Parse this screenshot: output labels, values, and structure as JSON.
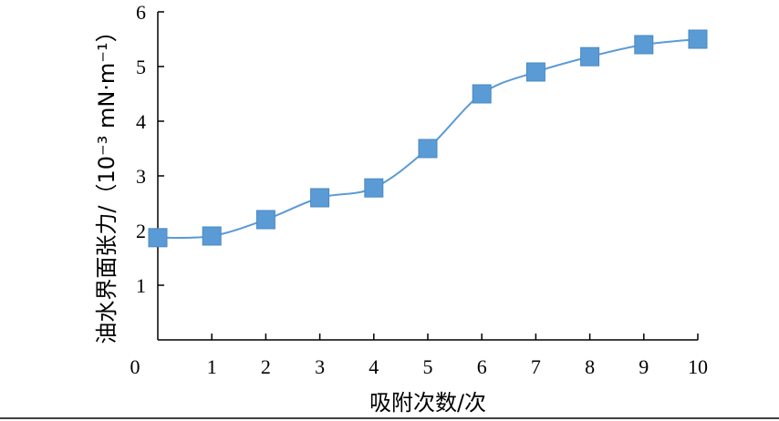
{
  "chart_data": {
    "type": "line",
    "title": "",
    "xlabel": "吸附次数/次",
    "ylabel": "油水界面张力/（10⁻³ mN·m⁻¹）",
    "xlim": [
      0,
      10
    ],
    "ylim": [
      0,
      6
    ],
    "x_ticks": [
      "0",
      "1",
      "2",
      "3",
      "4",
      "5",
      "6",
      "7",
      "8",
      "9",
      "10"
    ],
    "y_ticks": [
      "1",
      "2",
      "3",
      "4",
      "5",
      "6"
    ],
    "grid": false,
    "marker": "square",
    "smooth": true,
    "color": "#5B9BD5",
    "x": [
      0,
      1,
      2,
      3,
      4,
      5,
      6,
      7,
      8,
      9,
      10
    ],
    "values": [
      1.87,
      1.9,
      2.2,
      2.6,
      2.78,
      3.5,
      4.5,
      4.9,
      5.18,
      5.4,
      5.5
    ]
  }
}
